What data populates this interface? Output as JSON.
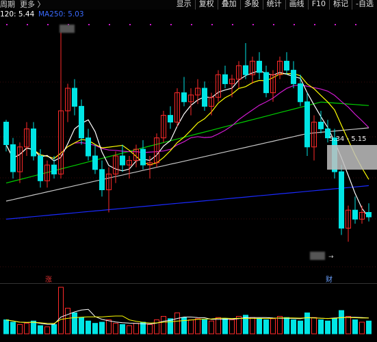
{
  "header": {
    "period_label": "周期",
    "more_label": "更多 〉"
  },
  "toolbar": {
    "items": [
      "显示",
      "复权",
      "叠加",
      "多股",
      "统计",
      "画线",
      "F10",
      "标记",
      "-自选"
    ]
  },
  "indicators": {
    "ma120_label": "120: 5.44",
    "ma250_label": "MA250: 5.03"
  },
  "chart_annotations": {
    "range_label": "5.34 - 5.15",
    "zhang_marker": "涨",
    "cai_marker": "财",
    "arrow_glyph": "→"
  },
  "colors": {
    "background": "#000000",
    "up_candle": "#ff2a2a",
    "down_candle": "#00e5e5",
    "ma5": "#ffffff",
    "ma10": "#ffff00",
    "ma20": "#d01ad0",
    "ma60": "#00d000",
    "ma120": "#c8c8c8",
    "ma250": "#1a2aff"
  },
  "chart_data": {
    "type": "candlestick",
    "ohlc": [
      [
        1,
        0.55,
        0.56,
        0.42,
        0.45
      ],
      [
        2,
        0.45,
        0.48,
        0.3,
        0.33
      ],
      [
        3,
        0.33,
        0.46,
        0.28,
        0.44
      ],
      [
        4,
        0.44,
        0.55,
        0.4,
        0.52
      ],
      [
        5,
        0.52,
        0.55,
        0.38,
        0.4
      ],
      [
        6,
        0.4,
        0.43,
        0.26,
        0.29
      ],
      [
        7,
        0.29,
        0.38,
        0.26,
        0.36
      ],
      [
        8,
        0.36,
        0.4,
        0.3,
        0.32
      ],
      [
        9,
        0.32,
        0.95,
        0.3,
        0.6
      ],
      [
        10,
        0.6,
        0.72,
        0.55,
        0.7
      ],
      [
        11,
        0.7,
        0.74,
        0.58,
        0.62
      ],
      [
        12,
        0.62,
        0.65,
        0.45,
        0.48
      ],
      [
        13,
        0.48,
        0.52,
        0.38,
        0.4
      ],
      [
        14,
        0.4,
        0.45,
        0.32,
        0.34
      ],
      [
        15,
        0.34,
        0.38,
        0.22,
        0.25
      ],
      [
        16,
        0.25,
        0.35,
        0.15,
        0.32
      ],
      [
        17,
        0.32,
        0.42,
        0.28,
        0.4
      ],
      [
        18,
        0.4,
        0.45,
        0.33,
        0.36
      ],
      [
        19,
        0.36,
        0.4,
        0.3,
        0.38
      ],
      [
        20,
        0.38,
        0.45,
        0.35,
        0.43
      ],
      [
        21,
        0.43,
        0.47,
        0.34,
        0.36
      ],
      [
        22,
        0.36,
        0.4,
        0.3,
        0.37
      ],
      [
        23,
        0.37,
        0.5,
        0.35,
        0.48
      ],
      [
        24,
        0.48,
        0.6,
        0.46,
        0.58
      ],
      [
        25,
        0.58,
        0.62,
        0.52,
        0.55
      ],
      [
        26,
        0.55,
        0.7,
        0.53,
        0.68
      ],
      [
        27,
        0.68,
        0.75,
        0.62,
        0.64
      ],
      [
        28,
        0.64,
        0.7,
        0.58,
        0.67
      ],
      [
        29,
        0.67,
        0.74,
        0.63,
        0.7
      ],
      [
        30,
        0.7,
        0.73,
        0.6,
        0.62
      ],
      [
        31,
        0.62,
        0.68,
        0.58,
        0.66
      ],
      [
        32,
        0.66,
        0.78,
        0.64,
        0.76
      ],
      [
        33,
        0.76,
        0.8,
        0.7,
        0.72
      ],
      [
        34,
        0.72,
        0.76,
        0.66,
        0.74
      ],
      [
        35,
        0.74,
        0.82,
        0.7,
        0.8
      ],
      [
        36,
        0.8,
        0.9,
        0.74,
        0.76
      ],
      [
        37,
        0.76,
        0.84,
        0.72,
        0.82
      ],
      [
        38,
        0.82,
        0.86,
        0.74,
        0.77
      ],
      [
        39,
        0.77,
        0.8,
        0.66,
        0.68
      ],
      [
        40,
        0.68,
        0.78,
        0.64,
        0.76
      ],
      [
        41,
        0.76,
        0.84,
        0.74,
        0.82
      ],
      [
        42,
        0.82,
        0.86,
        0.76,
        0.78
      ],
      [
        43,
        0.78,
        0.82,
        0.7,
        0.72
      ],
      [
        44,
        0.72,
        0.76,
        0.62,
        0.64
      ],
      [
        45,
        0.64,
        0.68,
        0.4,
        0.44
      ],
      [
        46,
        0.44,
        0.58,
        0.38,
        0.55
      ],
      [
        47,
        0.55,
        0.6,
        0.5,
        0.52
      ],
      [
        48,
        0.52,
        0.56,
        0.46,
        0.48
      ],
      [
        49,
        0.48,
        0.52,
        0.3,
        0.33
      ],
      [
        50,
        0.33,
        0.36,
        0.05,
        0.08
      ],
      [
        51,
        0.08,
        0.18,
        0.02,
        0.16
      ],
      [
        52,
        0.16,
        0.22,
        0.1,
        0.12
      ],
      [
        53,
        0.12,
        0.18,
        0.1,
        0.15
      ],
      [
        54,
        0.15,
        0.19,
        0.11,
        0.13
      ]
    ],
    "volume": [
      12,
      10,
      8,
      9,
      11,
      7,
      6,
      8,
      40,
      22,
      18,
      14,
      11,
      9,
      10,
      12,
      9,
      8,
      7,
      9,
      10,
      8,
      12,
      15,
      13,
      18,
      14,
      12,
      13,
      12,
      11,
      14,
      13,
      12,
      15,
      16,
      14,
      13,
      12,
      13,
      15,
      14,
      12,
      11,
      18,
      14,
      12,
      11,
      13,
      20,
      15,
      12,
      10,
      11
    ]
  }
}
